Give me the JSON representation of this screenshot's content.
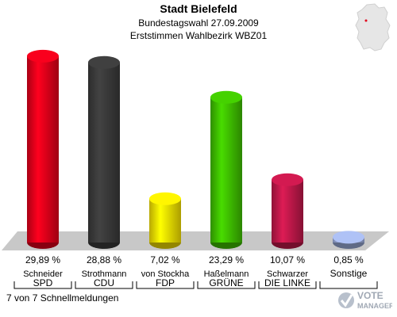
{
  "header": {
    "title": "Stadt Bielefeld",
    "subtitle": "Bundestagswahl 27.09.2009",
    "subtitle2": "Erststimmen Wahlbezirk WBZ01"
  },
  "footer": {
    "status": "7 von 7 Schnellmeldungen"
  },
  "logo": {
    "text_top": "VOTE",
    "text_bottom": "MANAGER"
  },
  "chart_data": {
    "type": "bar",
    "title": "Stadt Bielefeld",
    "subtitle": "Bundestagswahl 27.09.2009 — Erststimmen Wahlbezirk WBZ01",
    "categories": [
      "SPD",
      "CDU",
      "FDP",
      "GRÜNE",
      "DIE LINKE",
      "Sonstige"
    ],
    "candidates": [
      "Schneider",
      "Strothmann",
      "von Stockha",
      "Haßelmann",
      "Schwarzer",
      ""
    ],
    "values": [
      29.89,
      28.88,
      7.02,
      23.29,
      10.07,
      0.85
    ],
    "value_labels": [
      "29,89 %",
      "28,88 %",
      "7,02 %",
      "23,29 %",
      "10,07 %",
      "0,85 %"
    ],
    "colors": [
      "#e2001a",
      "#3a3a3a",
      "#f5e000",
      "#3fbf00",
      "#c0184a",
      "#9fb0e0"
    ],
    "ylim": [
      0,
      30
    ],
    "grid": false,
    "legend": "none"
  }
}
